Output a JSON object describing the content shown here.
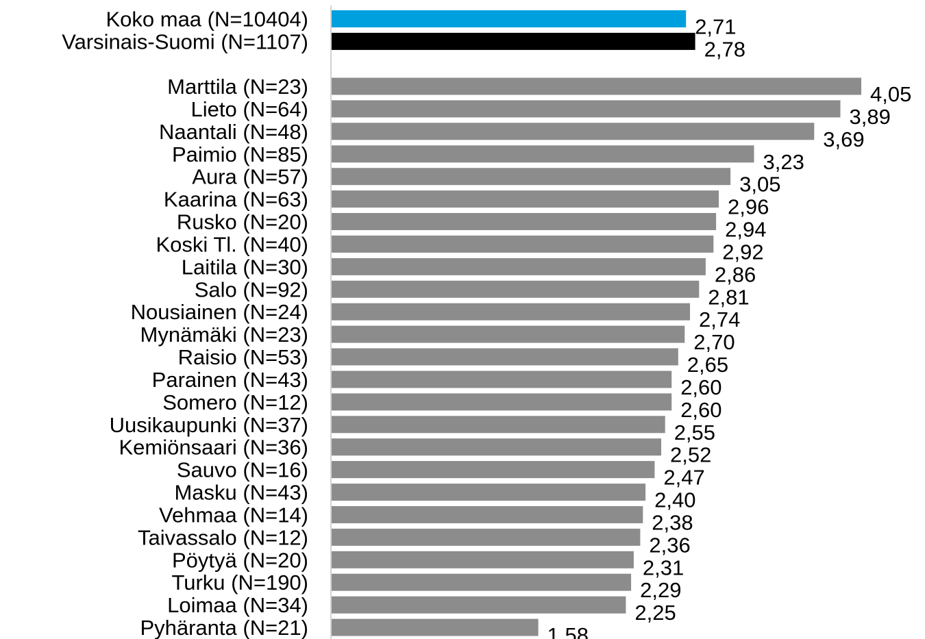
{
  "chart_data": {
    "type": "bar",
    "orientation": "horizontal",
    "title": "",
    "xlabel": "",
    "ylabel": "",
    "xlim": [
      0,
      4.05
    ],
    "grid": false,
    "legend": "none",
    "decimal_separator": ",",
    "groups": [
      {
        "name": "reference",
        "bars": [
          {
            "category": "Koko maa (N=10404)",
            "value": 2.71,
            "color": "#00a0df"
          },
          {
            "category": "Varsinais-Suomi (N=1107)",
            "value": 2.78,
            "color": "#000000"
          }
        ]
      },
      {
        "name": "municipalities",
        "bars": [
          {
            "category": "Marttila (N=23)",
            "value": 4.05,
            "color": "#8c8c8c"
          },
          {
            "category": "Lieto (N=64)",
            "value": 3.89,
            "color": "#8c8c8c"
          },
          {
            "category": "Naantali (N=48)",
            "value": 3.69,
            "color": "#8c8c8c"
          },
          {
            "category": "Paimio (N=85)",
            "value": 3.23,
            "color": "#8c8c8c"
          },
          {
            "category": "Aura (N=57)",
            "value": 3.05,
            "color": "#8c8c8c"
          },
          {
            "category": "Kaarina (N=63)",
            "value": 2.96,
            "color": "#8c8c8c"
          },
          {
            "category": "Rusko (N=20)",
            "value": 2.94,
            "color": "#8c8c8c"
          },
          {
            "category": "Koski Tl. (N=40)",
            "value": 2.92,
            "color": "#8c8c8c"
          },
          {
            "category": "Laitila (N=30)",
            "value": 2.86,
            "color": "#8c8c8c"
          },
          {
            "category": "Salo (N=92)",
            "value": 2.81,
            "color": "#8c8c8c"
          },
          {
            "category": "Nousiainen (N=24)",
            "value": 2.74,
            "color": "#8c8c8c"
          },
          {
            "category": "Mynämäki (N=23)",
            "value": 2.7,
            "color": "#8c8c8c"
          },
          {
            "category": "Raisio (N=53)",
            "value": 2.65,
            "color": "#8c8c8c"
          },
          {
            "category": "Parainen (N=43)",
            "value": 2.6,
            "color": "#8c8c8c"
          },
          {
            "category": "Somero (N=12)",
            "value": 2.6,
            "color": "#8c8c8c"
          },
          {
            "category": "Uusikaupunki (N=37)",
            "value": 2.55,
            "color": "#8c8c8c"
          },
          {
            "category": "Kemiönsaari (N=36)",
            "value": 2.52,
            "color": "#8c8c8c"
          },
          {
            "category": "Sauvo (N=16)",
            "value": 2.47,
            "color": "#8c8c8c"
          },
          {
            "category": "Masku (N=43)",
            "value": 2.4,
            "color": "#8c8c8c"
          },
          {
            "category": "Vehmaa (N=14)",
            "value": 2.38,
            "color": "#8c8c8c"
          },
          {
            "category": "Taivassalo (N=12)",
            "value": 2.36,
            "color": "#8c8c8c"
          },
          {
            "category": "Pöytyä (N=20)",
            "value": 2.31,
            "color": "#8c8c8c"
          },
          {
            "category": "Turku (N=190)",
            "value": 2.29,
            "color": "#8c8c8c"
          },
          {
            "category": "Loimaa (N=34)",
            "value": 2.25,
            "color": "#8c8c8c"
          },
          {
            "category": "Pyhäranta (N=21)",
            "value": 1.58,
            "color": "#8c8c8c"
          }
        ]
      }
    ]
  }
}
